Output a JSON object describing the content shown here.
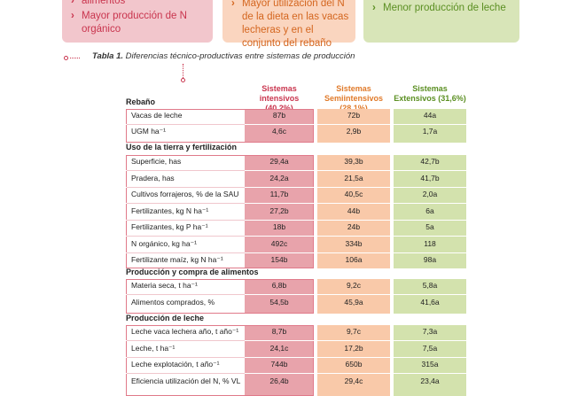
{
  "top_boxes": {
    "pink": [
      "alimentos",
      "Mayor producción de N orgánico"
    ],
    "orange": [
      "Mayor utilización del N de la dieta en las vacas lecheras y en el conjunto del rebaño"
    ],
    "green": [
      "Menor producción de leche"
    ]
  },
  "caption": {
    "label": "Tabla 1.",
    "text": " Diferencias técnico-productivas entre sistemas de producción"
  },
  "table": {
    "corner_label": "Rebaño",
    "headers": [
      "Sistemas intensivos (40,2%)",
      "Sistemas Semiintensivos (28,1%)",
      "Sistemas Extensivos (31,6%)"
    ],
    "header_colors": [
      "#c9354e",
      "#e07a2a",
      "#5b8f22"
    ],
    "column_colors": [
      "#e8a3ab",
      "#f9c9a9",
      "#d3e2ad"
    ],
    "sections": [
      {
        "title": "",
        "rows": [
          {
            "label": "Vacas de leche",
            "values": [
              "87b",
              "72b",
              "44a"
            ]
          },
          {
            "label": "UGM ha⁻¹",
            "values": [
              "4,6c",
              "2,9b",
              "1,7a"
            ]
          }
        ]
      },
      {
        "title": "Uso de la tierra y fertilización",
        "rows": [
          {
            "label": "Superficie, has",
            "values": [
              "29,4a",
              "39,3b",
              "42,7b"
            ]
          },
          {
            "label": "Pradera, has",
            "values": [
              "24,2a",
              "21,5a",
              "41,7b"
            ]
          },
          {
            "label": "Cultivos forrajeros, % de la SAU",
            "values": [
              "11,7b",
              "40,5c",
              "2,0a"
            ]
          },
          {
            "label": "Fertilizantes, kg N ha⁻¹",
            "values": [
              "27,2b",
              "44b",
              "6a"
            ]
          },
          {
            "label": "Fertilizantes, kg P ha⁻¹",
            "values": [
              "18b",
              "24b",
              "5a"
            ]
          },
          {
            "label": "N orgánico, kg ha⁻¹",
            "values": [
              "492c",
              "334b",
              "118"
            ]
          },
          {
            "label": "Fertilizante maíz, kg N ha⁻¹",
            "values": [
              "154b",
              "106a",
              "98a"
            ]
          }
        ]
      },
      {
        "title": "Producción y compra de alimentos",
        "rows": [
          {
            "label": "Materia seca, t ha⁻¹",
            "values": [
              "6,8b",
              "9,2c",
              "5,8a"
            ]
          },
          {
            "label": "Alimentos comprados, %",
            "values": [
              "54,5b",
              "45,9a",
              "41,6a"
            ]
          }
        ]
      },
      {
        "title": "Producción de leche",
        "rows": [
          {
            "label": "Leche vaca lechera año, t año⁻¹",
            "values": [
              "8,7b",
              "9,7c",
              "7,3a"
            ]
          },
          {
            "label": "Leche, t ha⁻¹",
            "values": [
              "24,1c",
              "17,2b",
              "7,5a"
            ]
          },
          {
            "label": "Leche explotación, t año⁻¹",
            "values": [
              "744b",
              "650b",
              "315a"
            ]
          },
          {
            "label": "Eficiencia utilización del N, % VL",
            "values": [
              "26,4b",
              "29,4c",
              "23,4a"
            ]
          }
        ]
      }
    ]
  }
}
